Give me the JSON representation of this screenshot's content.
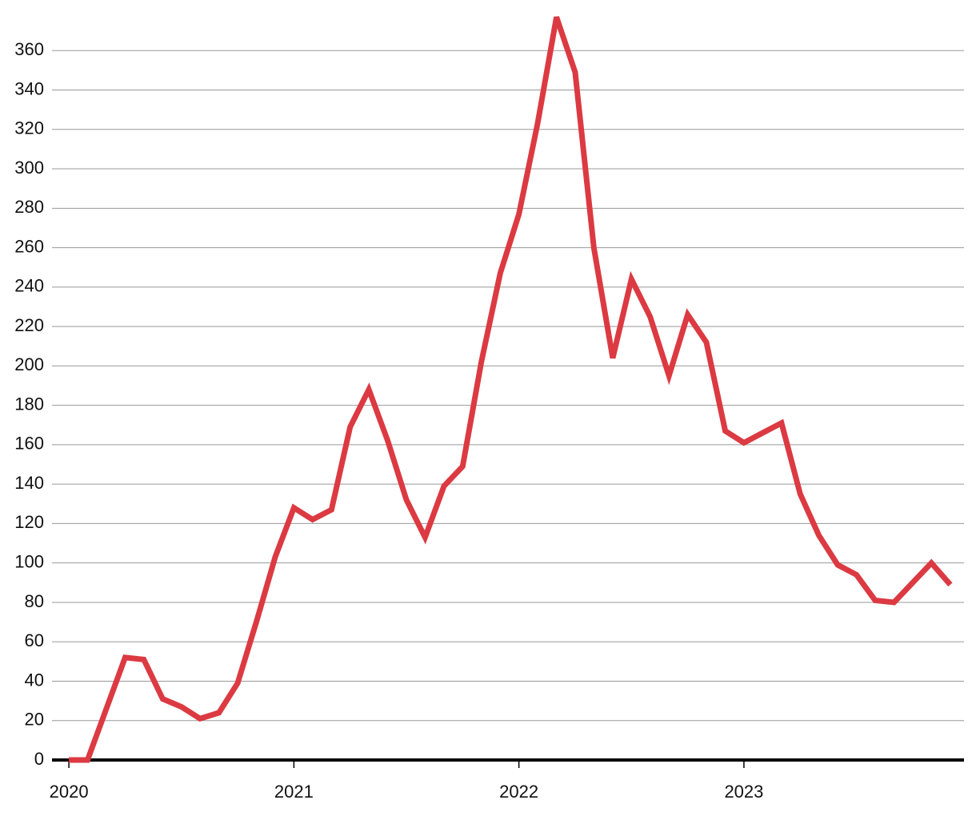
{
  "chart_data": {
    "type": "line",
    "x": [
      2020,
      2020.083,
      2020.25,
      2020.333,
      2020.417,
      2020.5,
      2020.583,
      2020.667,
      2020.75,
      2020.833,
      2020.917,
      2021,
      2021.083,
      2021.167,
      2021.25,
      2021.333,
      2021.417,
      2021.5,
      2021.583,
      2021.667,
      2021.75,
      2021.833,
      2021.917,
      2022,
      2022.083,
      2022.167,
      2022.25,
      2022.333,
      2022.417,
      2022.5,
      2022.583,
      2022.667,
      2022.75,
      2022.833,
      2022.917,
      2023,
      2023.083,
      2023.167,
      2023.25,
      2023.333,
      2023.417,
      2023.5,
      2023.583,
      2023.667,
      2023.75,
      2023.833,
      2023.917
    ],
    "series": [
      {
        "color": "#dc3a42",
        "values": [
          0,
          0,
          52,
          51,
          31,
          27,
          21,
          24,
          39,
          70,
          103,
          128,
          122,
          127,
          169,
          188,
          162,
          132,
          113,
          139,
          149,
          202,
          247,
          277,
          323,
          377,
          349,
          260,
          204,
          244,
          225,
          195,
          226,
          212,
          167,
          161,
          166,
          171,
          135,
          114,
          99,
          94,
          81,
          80,
          90,
          100,
          89
        ]
      }
    ],
    "xlim": [
      2019.925,
      2023.978
    ],
    "xticks": [
      2020,
      2021,
      2022,
      2023
    ],
    "ylim": [
      0,
      380
    ],
    "yticks": [
      0,
      20,
      40,
      60,
      80,
      100,
      120,
      140,
      160,
      180,
      200,
      220,
      240,
      260,
      280,
      300,
      320,
      340,
      360
    ],
    "grid": true
  }
}
